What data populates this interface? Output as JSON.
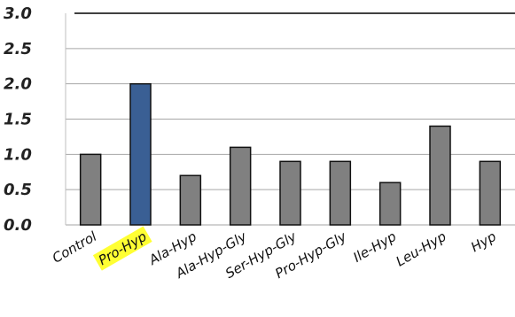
{
  "chart_data": {
    "type": "bar",
    "title": "",
    "xlabel": "",
    "ylabel": "",
    "categories": [
      "Control",
      "Pro-Hyp",
      "Ala-Hyp",
      "Ala-Hyp-Gly",
      "Ser-Hyp-Gly",
      "Pro-Hyp-Gly",
      "Ile-Hyp",
      "Leu-Hyp",
      "Hyp"
    ],
    "values": [
      1.0,
      2.0,
      0.7,
      1.1,
      0.9,
      0.9,
      0.6,
      1.4,
      0.9
    ],
    "highlight_index": 1,
    "ylim": [
      0,
      3.0
    ],
    "yticks": [
      "0.0",
      "0.5",
      "1.0",
      "1.5",
      "2.0",
      "2.5",
      "3.0"
    ],
    "grid": true,
    "colors": {
      "bar": "#808080",
      "bar_highlight": "#3a5f94",
      "bar_edge": "#111111",
      "label_highlight_bg": "#ffff33",
      "grid": "#a6a6a6"
    }
  }
}
